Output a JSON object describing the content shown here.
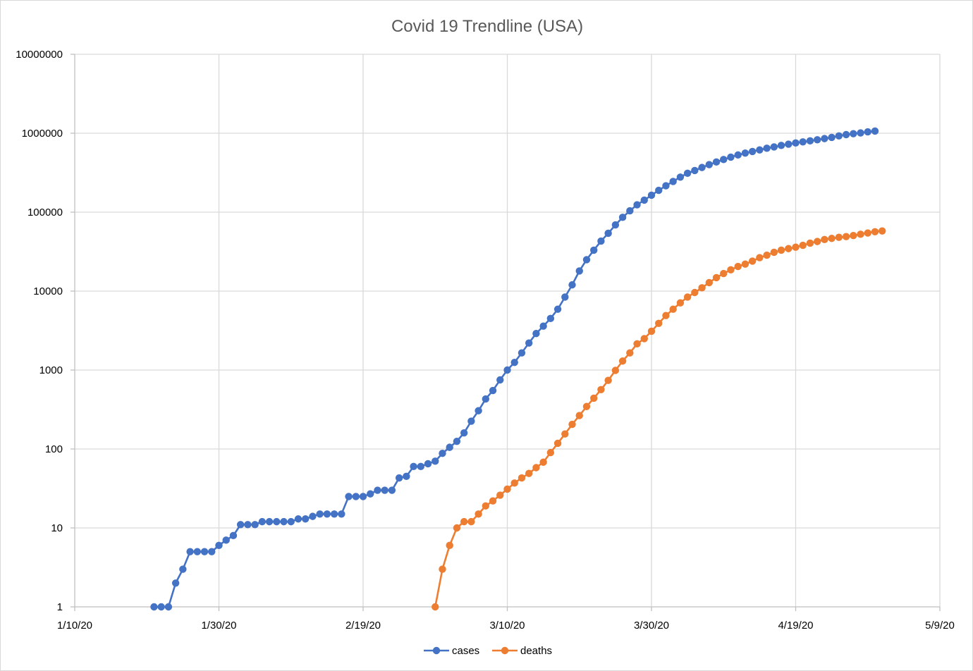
{
  "chart_data": {
    "type": "line",
    "title": "Covid 19 Trendline (USA)",
    "xlabel": "",
    "ylabel": "",
    "x_axis": {
      "type": "date",
      "min": "2020-01-10",
      "max": "2020-05-09",
      "tick_labels": [
        "1/10/20",
        "1/30/20",
        "2/19/20",
        "3/10/20",
        "3/30/20",
        "4/19/20",
        "5/9/20"
      ]
    },
    "y_axis": {
      "scale": "log",
      "min": 1,
      "max": 10000000,
      "tick_labels": [
        "1",
        "10",
        "100",
        "1000",
        "10000",
        "100000",
        "1000000",
        "10000000"
      ]
    },
    "grid": true,
    "legend": {
      "position": "bottom-center"
    },
    "series": [
      {
        "name": "cases",
        "color": "#4472c4",
        "start_date": "2020-01-21",
        "values": [
          1,
          1,
          1,
          2,
          3,
          5,
          5,
          5,
          5,
          6,
          7,
          8,
          11,
          11,
          11,
          12,
          12,
          12,
          12,
          12,
          13,
          13,
          14,
          15,
          15,
          15,
          15,
          25,
          25,
          25,
          27,
          30,
          30,
          30,
          43,
          45,
          60,
          60,
          65,
          70,
          88,
          105,
          125,
          160,
          225,
          305,
          430,
          550,
          750,
          1000,
          1250,
          1650,
          2200,
          2900,
          3600,
          4500,
          5900,
          8400,
          12000,
          18000,
          25000,
          33000,
          43000,
          54000,
          69000,
          86000,
          104000,
          124000,
          142000,
          164000,
          189000,
          216000,
          245000,
          278000,
          311000,
          337000,
          368000,
          400000,
          432000,
          464000,
          498000,
          530000,
          560000,
          587000,
          615000,
          645000,
          670000,
          700000,
          726000,
          752000,
          777000,
          800000,
          825000,
          855000,
          885000,
          925000,
          960000,
          987000,
          1010000,
          1040000,
          1064000
        ]
      },
      {
        "name": "deaths",
        "color": "#ed7d31",
        "start_date": "2020-02-29",
        "values": [
          1,
          3,
          6,
          10,
          12,
          12,
          15,
          19,
          22,
          26,
          31,
          37,
          43,
          49,
          58,
          68,
          90,
          118,
          155,
          205,
          265,
          345,
          440,
          565,
          740,
          990,
          1300,
          1650,
          2150,
          2500,
          3100,
          3900,
          4900,
          5900,
          7100,
          8400,
          9600,
          11000,
          12800,
          14800,
          16700,
          18600,
          20500,
          22000,
          24000,
          26500,
          28500,
          31000,
          33000,
          34500,
          36000,
          38000,
          40500,
          42500,
          45000,
          46500,
          48000,
          49000,
          50500,
          52500,
          54500,
          56500,
          57800
        ]
      }
    ]
  }
}
